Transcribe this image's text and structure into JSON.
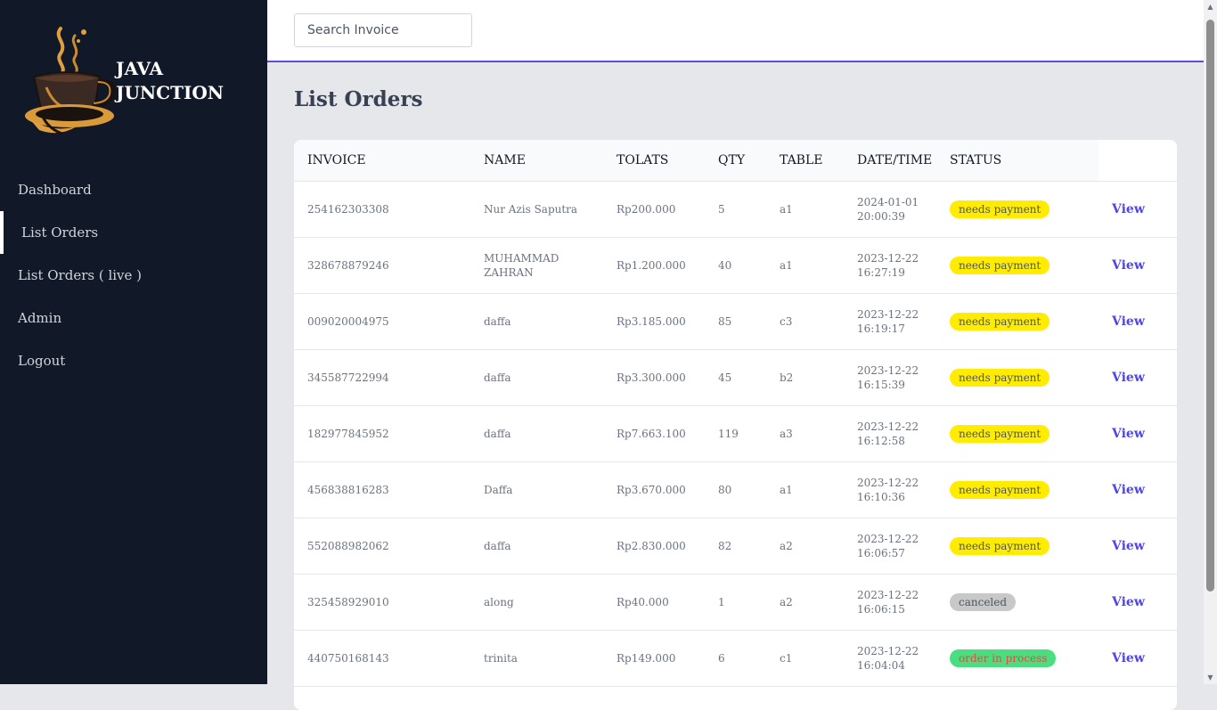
{
  "brand": {
    "line1": "JAVA",
    "line2": "JUNCTION",
    "logo_icon": "coffee-cup-icon"
  },
  "sidebar": {
    "items": [
      {
        "label": "Dashboard",
        "active": false
      },
      {
        "label": "List Orders",
        "active": true
      },
      {
        "label": "List Orders ( live )",
        "active": false
      },
      {
        "label": "Admin",
        "active": false
      },
      {
        "label": "Logout",
        "active": false
      }
    ]
  },
  "search": {
    "placeholder": "Search Invoice",
    "value": ""
  },
  "page": {
    "title": "List Orders"
  },
  "colors": {
    "needs_payment": "#ffec00",
    "canceled": "#c8c8c8",
    "order_in_process": "#4ade80",
    "order_in_process_text": "#ef4444",
    "accent": "#4f46e5"
  },
  "table": {
    "headers": {
      "invoice": "INVOICE",
      "name": "NAME",
      "totals": "TOLATS",
      "qty": "QTY",
      "table": "TABLE",
      "datetime": "DATE/TIME",
      "status": "STATUS"
    },
    "action_label": "View",
    "rows": [
      {
        "invoice": "254162303308",
        "name": "Nur Azis Saputra",
        "total": "Rp200.000",
        "qty": "5",
        "table": "a1",
        "date": "2024-01-01",
        "time": "20:00:39",
        "status": "needs payment",
        "status_key": "needs_payment"
      },
      {
        "invoice": "328678879246",
        "name": "MUHAMMAD ZAHRAN",
        "total": "Rp1.200.000",
        "qty": "40",
        "table": "a1",
        "date": "2023-12-22",
        "time": "16:27:19",
        "status": "needs payment",
        "status_key": "needs_payment"
      },
      {
        "invoice": "009020004975",
        "name": "daffa",
        "total": "Rp3.185.000",
        "qty": "85",
        "table": "c3",
        "date": "2023-12-22",
        "time": "16:19:17",
        "status": "needs payment",
        "status_key": "needs_payment"
      },
      {
        "invoice": "345587722994",
        "name": "daffa",
        "total": "Rp3.300.000",
        "qty": "45",
        "table": "b2",
        "date": "2023-12-22",
        "time": "16:15:39",
        "status": "needs payment",
        "status_key": "needs_payment"
      },
      {
        "invoice": "182977845952",
        "name": "daffa",
        "total": "Rp7.663.100",
        "qty": "119",
        "table": "a3",
        "date": "2023-12-22",
        "time": "16:12:58",
        "status": "needs payment",
        "status_key": "needs_payment"
      },
      {
        "invoice": "456838816283",
        "name": "Daffa",
        "total": "Rp3.670.000",
        "qty": "80",
        "table": "a1",
        "date": "2023-12-22",
        "time": "16:10:36",
        "status": "needs payment",
        "status_key": "needs_payment"
      },
      {
        "invoice": "552088982062",
        "name": "daffa",
        "total": "Rp2.830.000",
        "qty": "82",
        "table": "a2",
        "date": "2023-12-22",
        "time": "16:06:57",
        "status": "needs payment",
        "status_key": "needs_payment"
      },
      {
        "invoice": "325458929010",
        "name": "along",
        "total": "Rp40.000",
        "qty": "1",
        "table": "a2",
        "date": "2023-12-22",
        "time": "16:06:15",
        "status": "canceled",
        "status_key": "canceled"
      },
      {
        "invoice": "440750168143",
        "name": "trinita",
        "total": "Rp149.000",
        "qty": "6",
        "table": "c1",
        "date": "2023-12-22",
        "time": "16:04:04",
        "status": "order in process",
        "status_key": "order_in_process"
      }
    ]
  }
}
